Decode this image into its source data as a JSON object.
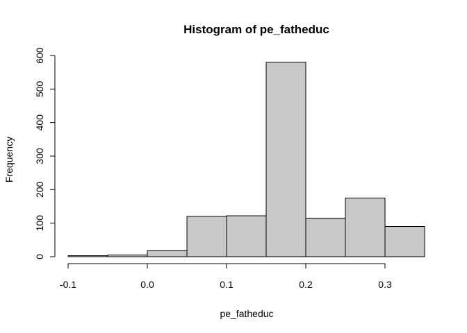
{
  "chart_data": {
    "type": "bar",
    "subtype": "histogram",
    "title": "Histogram of pe_fatheduc",
    "xlabel": "pe_fatheduc",
    "ylabel": "Frequency",
    "bins": [
      {
        "from": -0.1,
        "to": -0.05,
        "count": 3
      },
      {
        "from": -0.05,
        "to": 0.0,
        "count": 5
      },
      {
        "from": 0.0,
        "to": 0.05,
        "count": 18
      },
      {
        "from": 0.05,
        "to": 0.1,
        "count": 120
      },
      {
        "from": 0.1,
        "to": 0.15,
        "count": 122
      },
      {
        "from": 0.15,
        "to": 0.2,
        "count": 580
      },
      {
        "from": 0.2,
        "to": 0.25,
        "count": 115
      },
      {
        "from": 0.25,
        "to": 0.3,
        "count": 175
      },
      {
        "from": 0.3,
        "to": 0.35,
        "count": 90
      }
    ],
    "xlim": [
      -0.1,
      0.35
    ],
    "ylim": [
      0,
      600
    ],
    "x_ticks": [
      -0.1,
      0.0,
      0.1,
      0.2,
      0.3
    ],
    "x_tick_labels": [
      "-0.1",
      "0.0",
      "0.1",
      "0.2",
      "0.3"
    ],
    "y_ticks": [
      0,
      100,
      200,
      300,
      400,
      500,
      600
    ],
    "y_tick_labels": [
      "0",
      "100",
      "200",
      "300",
      "400",
      "500",
      "600"
    ],
    "grid": false,
    "bar_fill": "#c8c8c8",
    "bar_stroke": "#000000"
  }
}
